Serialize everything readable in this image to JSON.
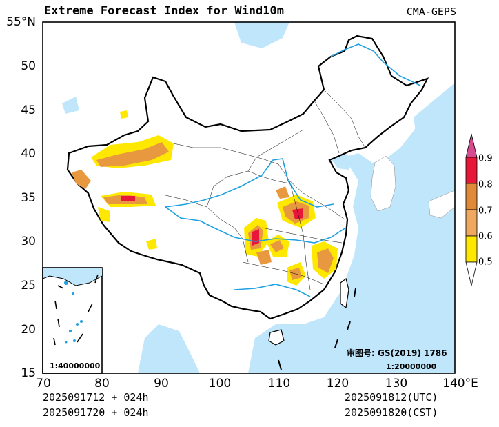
{
  "header": {
    "title": "Extreme Forecast Index for Wind10m",
    "model": "CMA-GEPS"
  },
  "map": {
    "projection": "lat-lon",
    "lon_ticks": [
      "70",
      "80",
      "90",
      "100",
      "110",
      "120",
      "130",
      "140°E"
    ],
    "lat_ticks": [
      "55°N",
      "50",
      "45",
      "40",
      "35",
      "30",
      "25",
      "20",
      "15"
    ],
    "land_color": "#ffffff",
    "sea_color": "#bfe6fb",
    "river_color": "#1fa0e0",
    "border_color": "#000000",
    "approval_no": "审图号: GS(2019) 1786",
    "scale_main": "1:20000000",
    "scale_inset": "1:40000000"
  },
  "colorbar": {
    "labels": [
      "0.9",
      "0.8",
      "0.7",
      "0.6",
      "0.5"
    ],
    "colors": [
      "#d84a90",
      "#e8173a",
      "#e08a38",
      "#f0a860",
      "#ffe800",
      "#ffffff"
    ]
  },
  "footer": {
    "init_utc": "2025091712 + 024h",
    "init_cst": "2025091720 + 024h",
    "valid_utc": "2025091812(UTC)",
    "valid_cst": "2025091820(CST)"
  }
}
